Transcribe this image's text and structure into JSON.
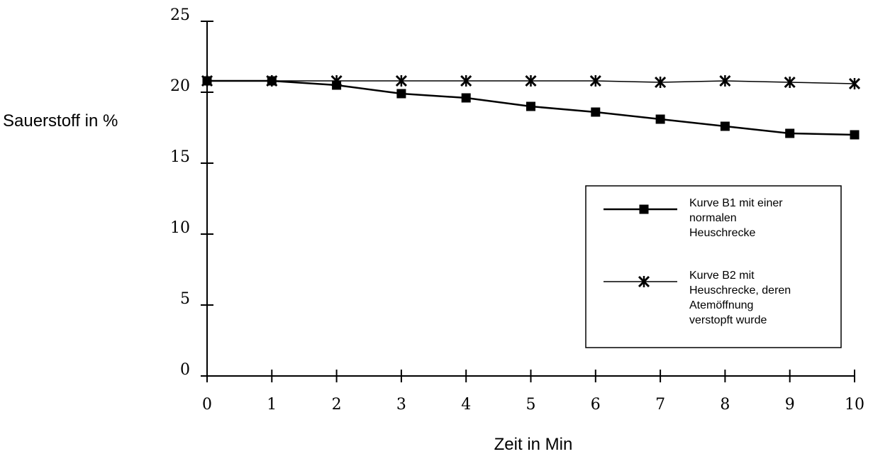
{
  "chart_data": {
    "type": "line",
    "title": "",
    "xlabel": "Zeit in Min",
    "ylabel": "Sauerstoff in %",
    "x": [
      0,
      1,
      2,
      3,
      4,
      5,
      6,
      7,
      8,
      9,
      10
    ],
    "xlim": [
      0,
      10
    ],
    "ylim": [
      0,
      25
    ],
    "x_ticks": [
      "0",
      "1",
      "2",
      "3",
      "4",
      "5",
      "6",
      "7",
      "8",
      "9",
      "10"
    ],
    "y_ticks": [
      "0",
      "5",
      "10",
      "15",
      "20",
      "25"
    ],
    "grid": false,
    "legend_placement": "right",
    "series": [
      {
        "name": "Kurve B1 mit einer normalen Heuschrecke",
        "legend_lines": [
          "Kurve B1 mit einer",
          "normalen",
          "Heuschrecke"
        ],
        "marker": "square",
        "color": "#000000",
        "values": [
          20.8,
          20.8,
          20.5,
          19.9,
          19.6,
          19.0,
          18.6,
          18.1,
          17.6,
          17.1,
          17.0
        ]
      },
      {
        "name": "Kurve B2 mit Heuschrecke, deren Atemöffnung verstopft wurde",
        "legend_lines": [
          "Kurve B2 mit",
          "Heuschrecke, deren",
          "Atemöffnung",
          "verstopft wurde"
        ],
        "marker": "asterisk",
        "color": "#000000",
        "values": [
          20.8,
          20.8,
          20.8,
          20.8,
          20.8,
          20.8,
          20.8,
          20.7,
          20.8,
          20.7,
          20.6
        ]
      }
    ]
  }
}
